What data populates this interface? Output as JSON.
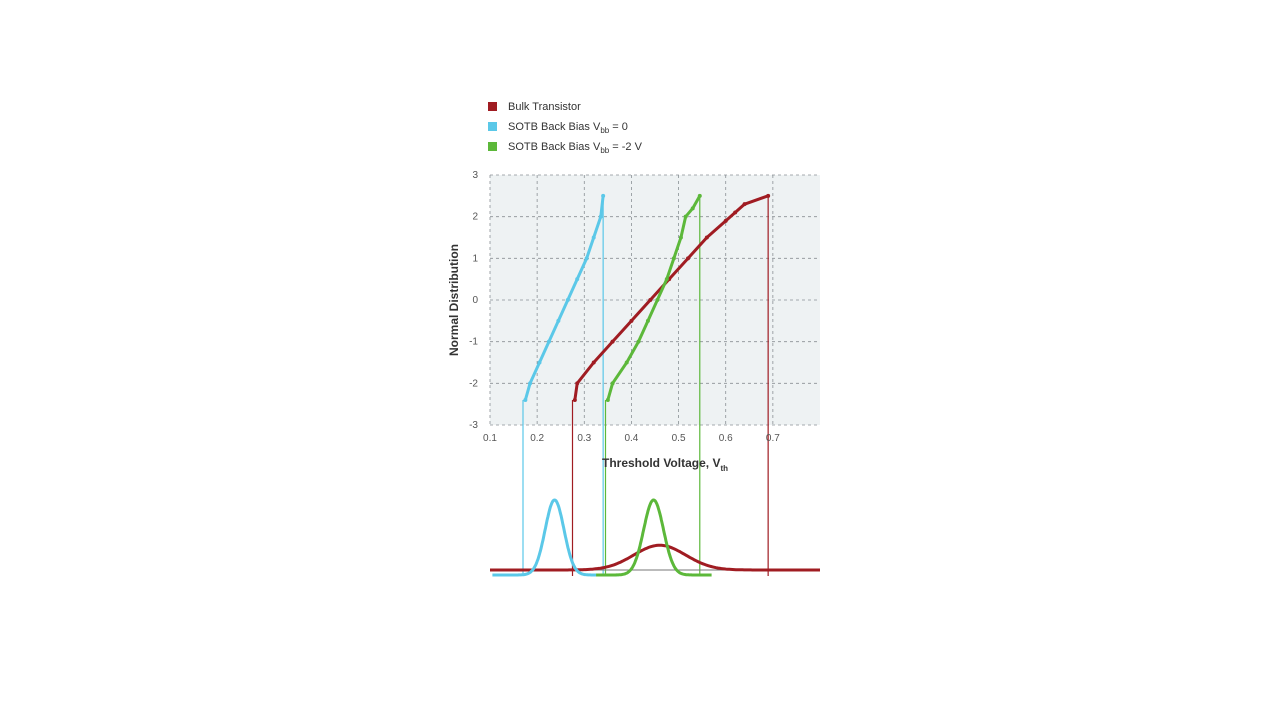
{
  "chart_data": {
    "type": "scatter",
    "title": "",
    "xlabel": "Threshold Voltage, V",
    "xlabel_subscript": "th",
    "ylabel": "Normal Distribution",
    "xlim": [
      0.1,
      0.8
    ],
    "ylim": [
      -3,
      3
    ],
    "grid": true,
    "legend_position": "top-left",
    "x_ticks": [
      0.1,
      0.2,
      0.3,
      0.4,
      0.5,
      0.6,
      0.7
    ],
    "x_tick_labels": [
      "0.1",
      "0.2",
      "0.3",
      "0.4",
      "0.5",
      "0.6",
      "0.7"
    ],
    "y_ticks": [
      -3,
      -2,
      -1,
      0,
      1,
      2,
      3
    ],
    "y_tick_labels": [
      "-3",
      "-2",
      "-1",
      "0",
      "1",
      "2",
      "3"
    ],
    "legend": [
      {
        "text": "Bulk Transistor",
        "sub": "",
        "suffix": "",
        "color": "#a01c22"
      },
      {
        "text": "SOTB Back Bias V",
        "sub": "bb",
        "suffix": " = 0",
        "color": "#5bc8e8"
      },
      {
        "text": "SOTB Back Bias V",
        "sub": "bb",
        "suffix": " = -2 V",
        "color": "#5cb83a"
      }
    ],
    "series": [
      {
        "name": "Bulk Transistor",
        "color": "#a01c22",
        "x": [
          0.28,
          0.285,
          0.32,
          0.36,
          0.4,
          0.44,
          0.48,
          0.52,
          0.56,
          0.6,
          0.62,
          0.64,
          0.69
        ],
        "y": [
          -2.4,
          -2.0,
          -1.5,
          -1.0,
          -0.5,
          0.0,
          0.5,
          1.0,
          1.5,
          1.9,
          2.1,
          2.3,
          2.5
        ],
        "min": 0.275,
        "max": 0.69,
        "density_mean": 0.46,
        "density_sd": 0.055,
        "density_peak": 0.33
      },
      {
        "name": "SOTB Back Bias Vbb = 0",
        "color": "#5bc8e8",
        "x": [
          0.175,
          0.185,
          0.205,
          0.225,
          0.245,
          0.265,
          0.285,
          0.305,
          0.32,
          0.335,
          0.34
        ],
        "y": [
          -2.4,
          -2.0,
          -1.5,
          -1.0,
          -0.5,
          0.0,
          0.5,
          1.0,
          1.5,
          2.0,
          2.5
        ],
        "min": 0.17,
        "max": 0.34,
        "density_mean": 0.237,
        "density_sd": 0.02,
        "density_peak": 1.0
      },
      {
        "name": "SOTB Back Bias Vbb = -2 V",
        "color": "#5cb83a",
        "x": [
          0.35,
          0.36,
          0.39,
          0.415,
          0.435,
          0.455,
          0.475,
          0.49,
          0.505,
          0.515,
          0.53,
          0.545
        ],
        "y": [
          -2.4,
          -2.0,
          -1.5,
          -1.0,
          -0.5,
          0.0,
          0.5,
          1.0,
          1.5,
          2.0,
          2.2,
          2.5
        ],
        "min": 0.345,
        "max": 0.545,
        "density_mean": 0.447,
        "density_sd": 0.021,
        "density_peak": 1.0
      }
    ]
  }
}
